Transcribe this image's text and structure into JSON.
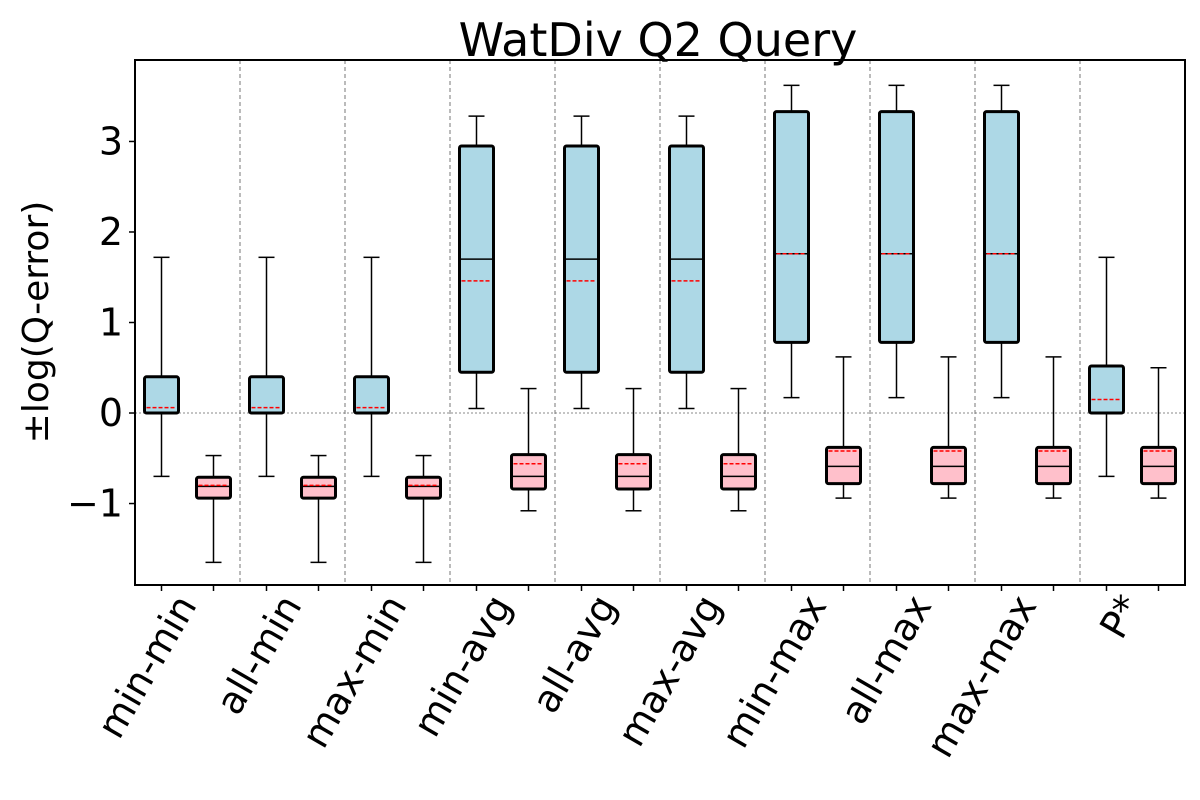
{
  "chart_data": {
    "type": "box",
    "title": "WatDiv Q2 Query",
    "xlabel": "",
    "ylabel": "±log(Q-error)",
    "ylim": [
      -1.9,
      3.9
    ],
    "yticks": [
      -1,
      0,
      1,
      2,
      3
    ],
    "ytick_labels": [
      "−1",
      "0",
      "1",
      "2",
      "3"
    ],
    "grid": false,
    "zero_line": true,
    "box_colors": {
      "positive": "#add8e6",
      "negative": "#ffc0cb",
      "mean": "#ff0000"
    },
    "categories": [
      "min-min",
      "all-min",
      "max-min",
      "min-avg",
      "all-avg",
      "max-avg",
      "min-max",
      "all-max",
      "max-max",
      "P*"
    ],
    "series": [
      {
        "boxes": [
          {
            "whislo": -0.7,
            "q1": 0.0,
            "med": 0.0,
            "mean": 0.06,
            "q3": 0.4,
            "whishi": 1.72
          },
          {
            "whislo": -0.7,
            "q1": 0.0,
            "med": 0.0,
            "mean": 0.06,
            "q3": 0.4,
            "whishi": 1.72
          },
          {
            "whislo": -0.7,
            "q1": 0.0,
            "med": 0.0,
            "mean": 0.06,
            "q3": 0.4,
            "whishi": 1.72
          },
          {
            "whislo": 0.05,
            "q1": 0.45,
            "med": 1.7,
            "mean": 1.46,
            "q3": 2.95,
            "whishi": 3.28
          },
          {
            "whislo": 0.05,
            "q1": 0.45,
            "med": 1.7,
            "mean": 1.46,
            "q3": 2.95,
            "whishi": 3.28
          },
          {
            "whislo": 0.05,
            "q1": 0.45,
            "med": 1.7,
            "mean": 1.46,
            "q3": 2.95,
            "whishi": 3.28
          },
          {
            "whislo": 0.17,
            "q1": 0.78,
            "med": 1.76,
            "mean": 1.76,
            "q3": 3.33,
            "whishi": 3.62
          },
          {
            "whislo": 0.17,
            "q1": 0.78,
            "med": 1.76,
            "mean": 1.76,
            "q3": 3.33,
            "whishi": 3.62
          },
          {
            "whislo": 0.17,
            "q1": 0.78,
            "med": 1.76,
            "mean": 1.76,
            "q3": 3.33,
            "whishi": 3.62
          },
          {
            "whislo": -0.7,
            "q1": 0.0,
            "med": 0.0,
            "mean": 0.15,
            "q3": 0.52,
            "whishi": 1.72
          }
        ]
      },
      {
        "boxes": [
          {
            "whislo": -1.65,
            "q1": -0.94,
            "med": -0.81,
            "mean": -0.8,
            "q3": -0.71,
            "whishi": -0.47
          },
          {
            "whislo": -1.65,
            "q1": -0.94,
            "med": -0.81,
            "mean": -0.8,
            "q3": -0.71,
            "whishi": -0.47
          },
          {
            "whislo": -1.65,
            "q1": -0.94,
            "med": -0.81,
            "mean": -0.8,
            "q3": -0.71,
            "whishi": -0.47
          },
          {
            "whislo": -1.08,
            "q1": -0.84,
            "med": -0.7,
            "mean": -0.56,
            "q3": -0.46,
            "whishi": 0.27
          },
          {
            "whislo": -1.08,
            "q1": -0.84,
            "med": -0.7,
            "mean": -0.56,
            "q3": -0.46,
            "whishi": 0.27
          },
          {
            "whislo": -1.08,
            "q1": -0.84,
            "med": -0.7,
            "mean": -0.56,
            "q3": -0.46,
            "whishi": 0.27
          },
          {
            "whislo": -0.94,
            "q1": -0.78,
            "med": -0.59,
            "mean": -0.42,
            "q3": -0.38,
            "whishi": 0.62
          },
          {
            "whislo": -0.94,
            "q1": -0.78,
            "med": -0.59,
            "mean": -0.42,
            "q3": -0.38,
            "whishi": 0.62
          },
          {
            "whislo": -0.94,
            "q1": -0.78,
            "med": -0.59,
            "mean": -0.42,
            "q3": -0.38,
            "whishi": 0.62
          },
          {
            "whislo": -0.94,
            "q1": -0.78,
            "med": -0.59,
            "mean": -0.42,
            "q3": -0.38,
            "whishi": 0.5
          }
        ]
      }
    ]
  }
}
